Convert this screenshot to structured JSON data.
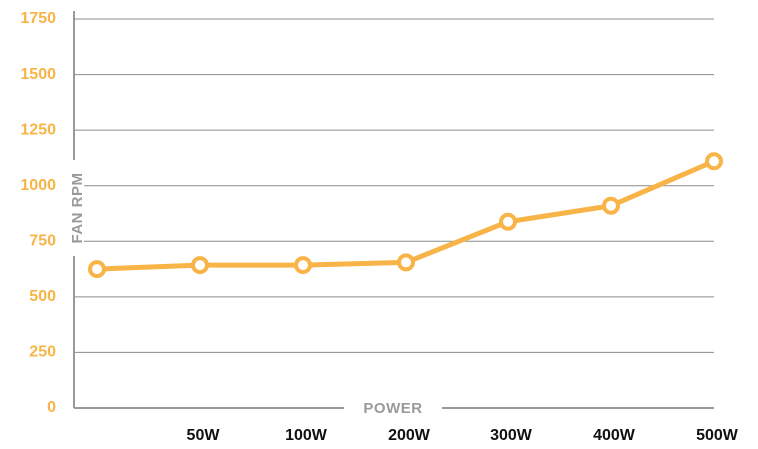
{
  "chart_data": {
    "type": "line",
    "title": "",
    "xlabel": "POWER",
    "ylabel": "FAN RPM",
    "categories": [
      "",
      "50W",
      "100W",
      "200W",
      "300W",
      "400W",
      "500W"
    ],
    "series": [
      {
        "values": [
          625,
          643,
          643,
          655,
          838,
          910,
          1110
        ]
      }
    ],
    "ylim": [
      0,
      1750
    ],
    "yticks": [
      "0",
      "250",
      "500",
      "750",
      "1000",
      "1250",
      "1500",
      "1750"
    ],
    "grid": true,
    "colors": {
      "line": "#F8B446",
      "marker_fill": "#ffffff",
      "tick_label": "#F8B446",
      "gridline": "#8c8c8c",
      "axis": "#9a9a9a",
      "xtick_label": "#111111"
    }
  }
}
